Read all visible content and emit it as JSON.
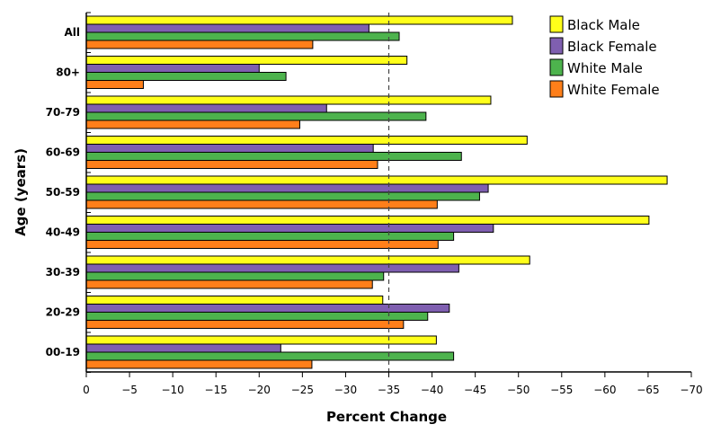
{
  "chart_data": {
    "type": "bar",
    "orientation": "horizontal",
    "title": "",
    "xlabel": "Percent Change",
    "ylabel": "Age (years)",
    "xlim": [
      0,
      -70
    ],
    "xticks": [
      0,
      -5,
      -10,
      -15,
      -20,
      -25,
      -30,
      -35,
      -40,
      -45,
      -50,
      -55,
      -60,
      -65,
      -70
    ],
    "reference_line": -35,
    "grid": false,
    "legend_position": "top-right",
    "categories": [
      "All",
      "80+",
      "70-79",
      "60-69",
      "50-59",
      "40-49",
      "30-39",
      "20-29",
      "00-19"
    ],
    "series": [
      {
        "name": "Black Male",
        "color": "#ffff1a",
        "values": [
          -49.3,
          -37.1,
          -46.8,
          -51.0,
          -67.2,
          -65.1,
          -51.3,
          -34.3,
          -40.5
        ]
      },
      {
        "name": "Black Female",
        "color": "#7f5fb0",
        "values": [
          -32.7,
          -20.0,
          -27.8,
          -33.2,
          -46.5,
          -47.1,
          -43.1,
          -42.0,
          -22.5
        ]
      },
      {
        "name": "White Male",
        "color": "#4db34d",
        "values": [
          -36.2,
          -23.1,
          -39.3,
          -43.4,
          -45.5,
          -42.5,
          -34.4,
          -39.5,
          -42.5
        ]
      },
      {
        "name": "White Female",
        "color": "#ff7f1a",
        "values": [
          -26.2,
          -6.6,
          -24.7,
          -33.7,
          -40.6,
          -40.7,
          -33.1,
          -36.7,
          -26.1
        ]
      }
    ]
  }
}
